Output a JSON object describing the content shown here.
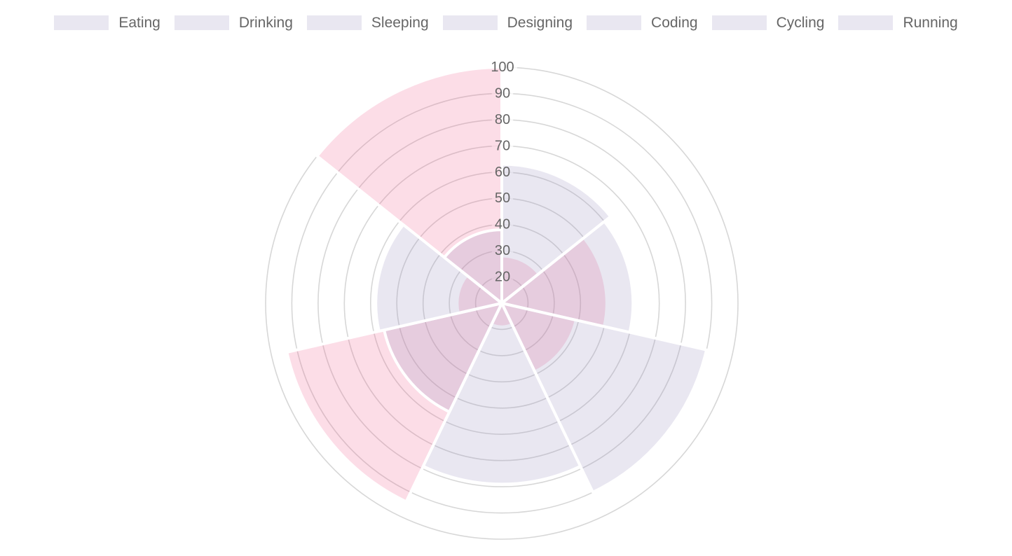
{
  "page": {
    "background": "#ffffff"
  },
  "chart_data": {
    "type": "polarArea",
    "categories": [
      "Eating",
      "Drinking",
      "Sleeping",
      "Designing",
      "Coding",
      "Cycling",
      "Running"
    ],
    "series": [
      {
        "name": "lavender-dataset (drawn on top, shown in legend)",
        "fill": "rgba(156,146,192,0.22)",
        "values": [
          63,
          60,
          90,
          79,
          56,
          58,
          38
        ]
      },
      {
        "name": "pink-dataset (drawn underneath)",
        "fill": "rgba(240,98,146,0.22)",
        "values": [
          28,
          50,
          39,
          19,
          94,
          27,
          100
        ]
      }
    ],
    "scale": {
      "min": 10,
      "max": 100,
      "step": 10,
      "tick_labels": [
        "20",
        "30",
        "40",
        "50",
        "60",
        "70",
        "80",
        "90",
        "100"
      ],
      "tick_color": "#666666",
      "tick_backdrop": "rgba(255,255,255,0.75)"
    },
    "legend": {
      "position": "top",
      "labels": [
        "Eating",
        "Drinking",
        "Sleeping",
        "Designing",
        "Coding",
        "Cycling",
        "Running"
      ],
      "swatch_fill": "rgba(156,146,192,0.22)",
      "text_color": "#666666"
    },
    "grid": {
      "ring_color": "#d7d7d7",
      "ring_width": 1.6,
      "sector_border_color": "#ffffff",
      "sector_border_width": 4,
      "start_angle_deg": 0,
      "direction": "clockwise"
    }
  }
}
